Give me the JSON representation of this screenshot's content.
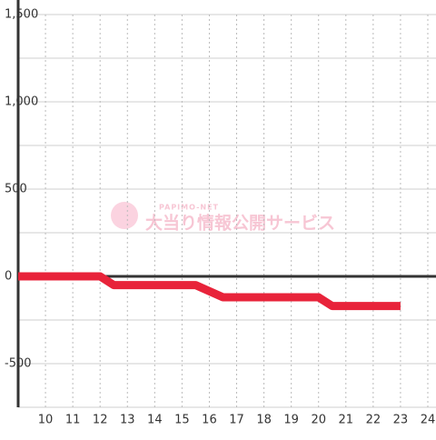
{
  "chart_data": {
    "type": "line",
    "x": [
      9,
      12,
      12.5,
      15.5,
      16.5,
      20,
      20.5,
      23
    ],
    "values": [
      0,
      0,
      -50,
      -50,
      -120,
      -120,
      -170,
      -170
    ],
    "color": "#e8233a",
    "xlim": [
      9,
      24.3
    ],
    "xticks": [
      10,
      11,
      12,
      13,
      14,
      15,
      16,
      17,
      18,
      19,
      20,
      21,
      22,
      23,
      24
    ],
    "ylim": [
      -750,
      1500
    ],
    "yticks": [
      {
        "value": 1500,
        "label": "1,500"
      },
      {
        "value": 1000,
        "label": "1,000"
      },
      500,
      0,
      -500
    ],
    "yminor": [
      1250,
      750,
      250,
      -250,
      -750
    ],
    "grid": true,
    "watermark": {
      "brand": "PAPIMO-NET",
      "text": "大当り情報公開サービス"
    }
  }
}
